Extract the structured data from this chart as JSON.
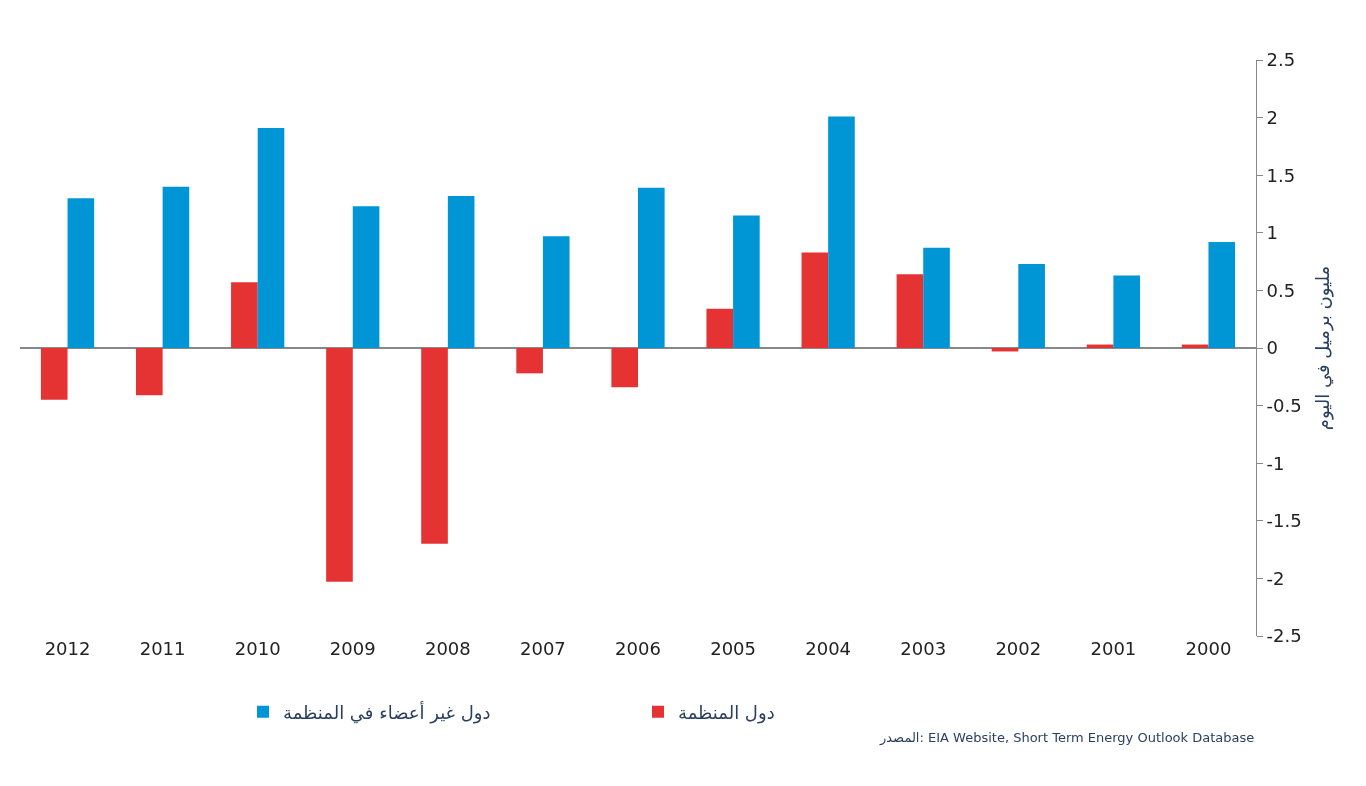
{
  "chart_data": {
    "type": "bar",
    "categories": [
      "2012",
      "2011",
      "2010",
      "2009",
      "2008",
      "2007",
      "2006",
      "2005",
      "2004",
      "2003",
      "2002",
      "2001",
      "2000"
    ],
    "series": [
      {
        "name": "دول المنظمة",
        "color": "#e53232",
        "values": [
          -0.45,
          -0.41,
          0.57,
          -2.03,
          -1.7,
          -0.22,
          -0.34,
          0.34,
          0.83,
          0.64,
          -0.03,
          0.03,
          0.03
        ]
      },
      {
        "name": "دول غير أعضاء في المنظمة",
        "color": "#0096d6",
        "values": [
          1.3,
          1.4,
          1.91,
          1.23,
          1.32,
          0.97,
          1.39,
          1.15,
          2.01,
          0.87,
          0.73,
          0.63,
          0.92
        ]
      }
    ],
    "ylabel": "مليون برميل في اليوم",
    "ylim": [
      -2.5,
      2.5
    ],
    "yticks": [
      -2.5,
      -2,
      -1.5,
      -1,
      -0.5,
      0,
      0.5,
      1,
      1.5,
      2,
      2.5
    ],
    "grid": false,
    "ref_lines": [
      {
        "axis": "y",
        "value": 0,
        "color": "#888888",
        "line_style": "solid"
      }
    ],
    "legend": "bottom",
    "annotations": [
      "المصدر: EIA Website, Short Term Energy Outlook Database"
    ]
  }
}
